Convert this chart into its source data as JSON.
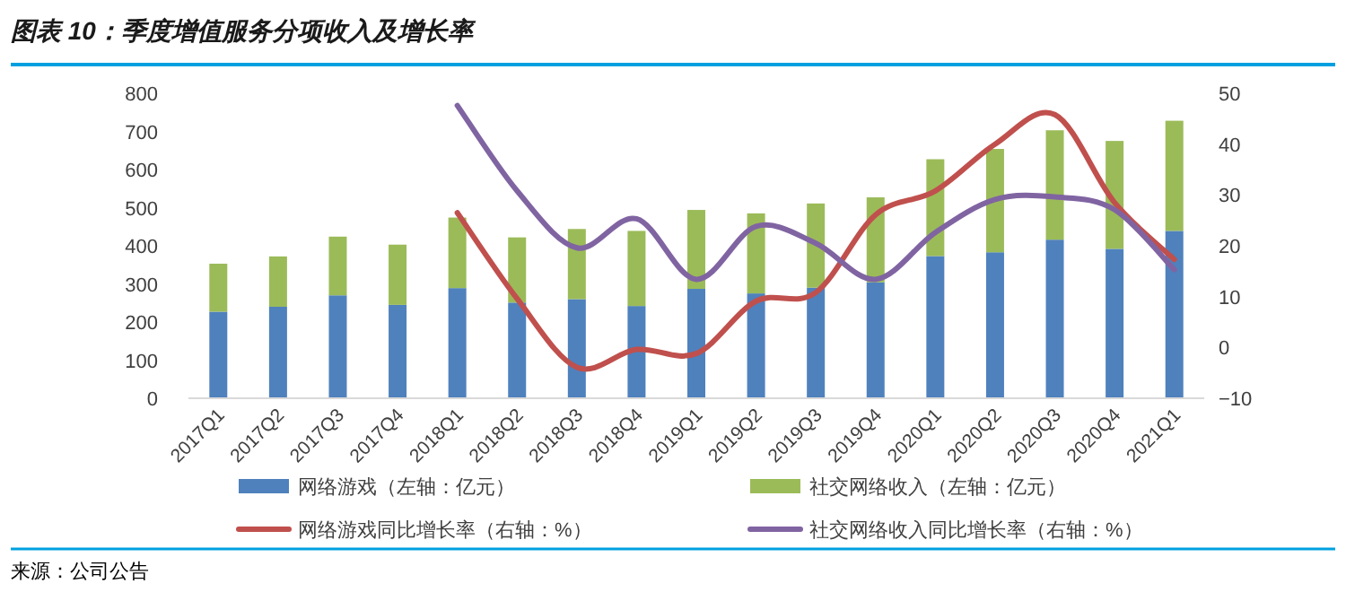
{
  "chart_data": {
    "type": "bar",
    "title": "图表 10：季度增值服务分项收入及增长率",
    "annotations": [
      "来源：公司公告"
    ],
    "categories": [
      "2017Q1",
      "2017Q2",
      "2017Q3",
      "2017Q4",
      "2018Q1",
      "2018Q2",
      "2018Q3",
      "2018Q4",
      "2019Q1",
      "2019Q2",
      "2019Q3",
      "2019Q4",
      "2020Q1",
      "2020Q2",
      "2020Q3",
      "2020Q4",
      "2021Q1"
    ],
    "stacked": true,
    "series": [
      {
        "name": "网络游戏（左轴：亿元）",
        "color": "#4f81bd",
        "values": [
          227,
          240,
          270,
          245,
          289,
          251,
          260,
          242,
          287,
          275,
          290,
          304,
          373,
          383,
          416,
          392,
          439
        ]
      },
      {
        "name": "社交网络收入（左轴：亿元）",
        "color": "#9bbb59",
        "values": [
          126,
          132,
          154,
          158,
          185,
          171,
          184,
          197,
          207,
          210,
          221,
          223,
          254,
          271,
          287,
          283,
          289
        ]
      },
      {
        "name": "网络游戏同比增长率（右轴：%）",
        "type": "line",
        "axis": "y2",
        "color": "#c0504d",
        "values": [
          null,
          null,
          null,
          null,
          26.5,
          9.6,
          -3.9,
          -0.4,
          -1.2,
          9.1,
          10.8,
          26.1,
          30.8,
          40,
          45.8,
          28.5,
          17.3
        ]
      },
      {
        "name": "社交网络收入同比增长率（右轴：%）",
        "type": "line",
        "axis": "y2",
        "color": "#8064a2",
        "values": [
          null,
          null,
          null,
          null,
          47.6,
          30.8,
          19.6,
          25.3,
          13.4,
          23.8,
          20.5,
          13.4,
          22.6,
          29.1,
          29.6,
          27.1,
          15.3
        ]
      }
    ],
    "ylim": [
      0,
      800
    ],
    "yticks": [
      0,
      100,
      200,
      300,
      400,
      500,
      600,
      700,
      800
    ],
    "y2lim": [
      -10,
      50
    ],
    "y2ticks": [
      -10,
      0,
      10,
      20,
      30,
      40,
      50
    ],
    "legend": "bottom"
  }
}
